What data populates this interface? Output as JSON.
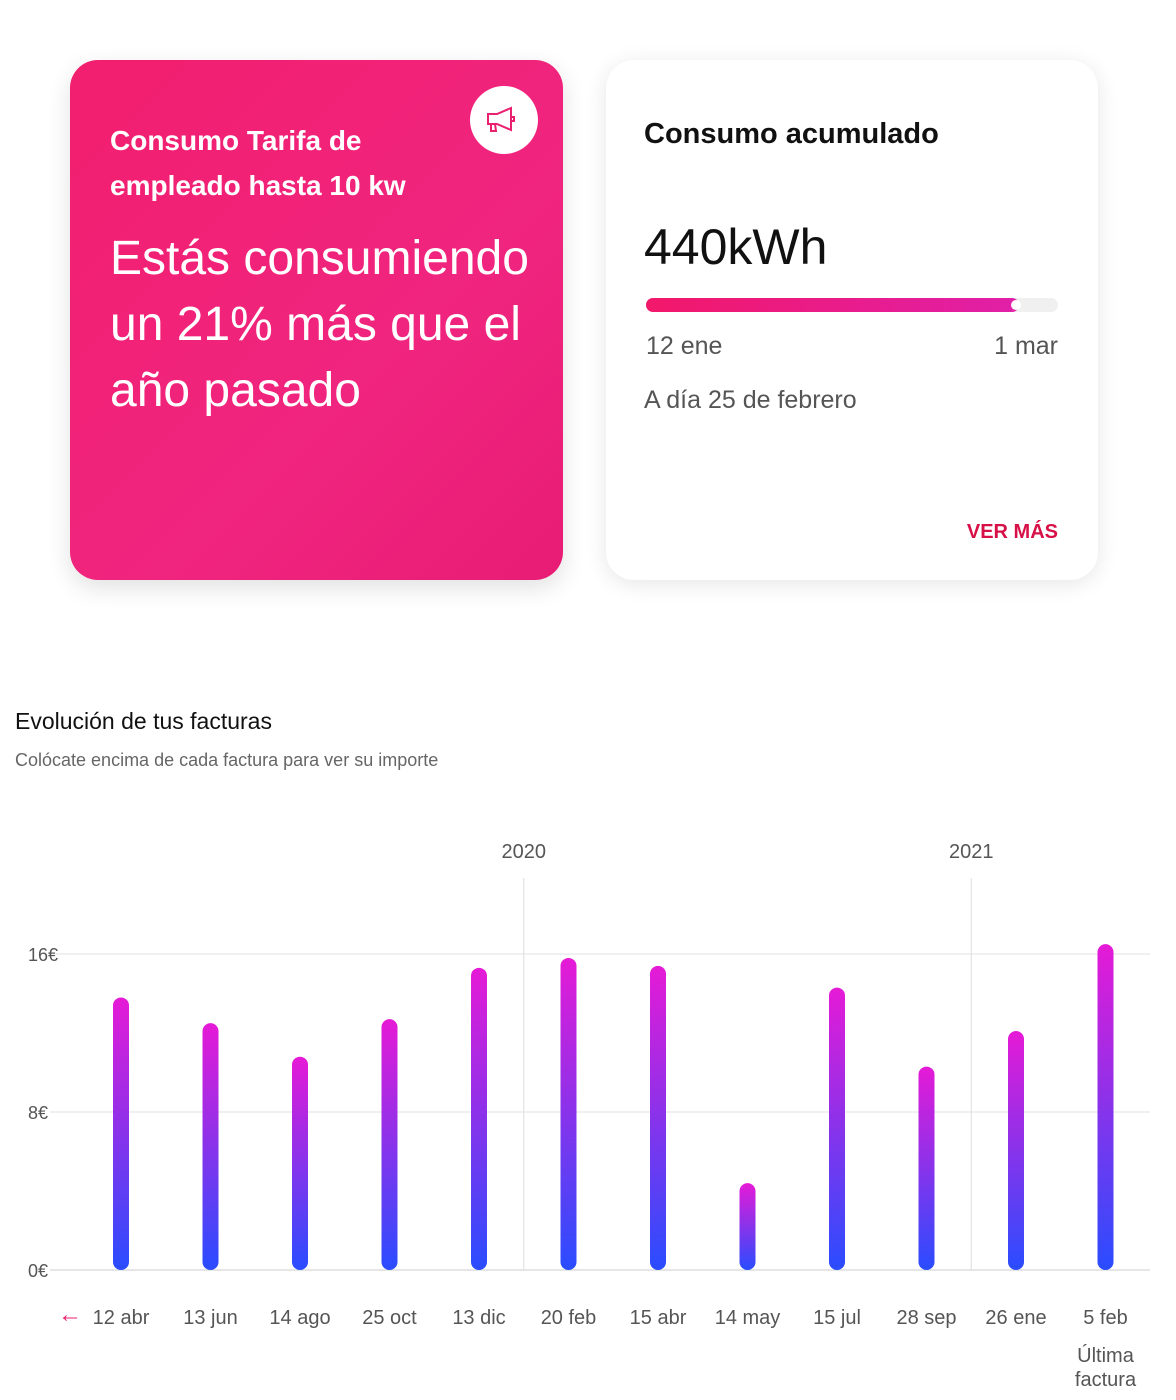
{
  "promo_card": {
    "subtitle": "Consumo Tarifa de empleado hasta 10 kw",
    "message": "Estás consumiendo un 21% más que el año pasado",
    "icon": "megaphone-icon",
    "color": "#f0247a"
  },
  "consumption_card": {
    "title": "Consumo acumulado",
    "value": "440kWh",
    "progress": 0.905,
    "start_label": "12 ene",
    "end_label": "1 mar",
    "as_of": "A día 25 de febrero",
    "more_link": "VER MÁS"
  },
  "bills": {
    "title": "Evolución de tus facturas",
    "subtitle": "Colócate encima de cada factura para ver su importe",
    "back_icon": "arrow-left-icon"
  },
  "chart_data": {
    "type": "bar",
    "categories": [
      "12 abr",
      "13 jun",
      "14 ago",
      "25 oct",
      "13 dic",
      "20 feb",
      "15 abr",
      "14 may",
      "15 jul",
      "28 sep",
      "26 ene",
      "5 feb"
    ],
    "values": [
      13.8,
      12.5,
      10.8,
      12.7,
      15.3,
      15.8,
      15.4,
      4.4,
      14.3,
      10.3,
      12.1,
      16.5
    ],
    "year_markers": [
      {
        "label": "2020",
        "before_index": 5
      },
      {
        "label": "2021",
        "before_index": 10
      }
    ],
    "yticks": [
      "0€",
      "8€",
      "16€"
    ],
    "ytick_values": [
      0,
      8,
      16
    ],
    "ylim": [
      0,
      16
    ],
    "last_label": "Última factura",
    "grid": true,
    "colors": {
      "top": "#e61ad6",
      "bottom": "#2a4cff"
    }
  }
}
